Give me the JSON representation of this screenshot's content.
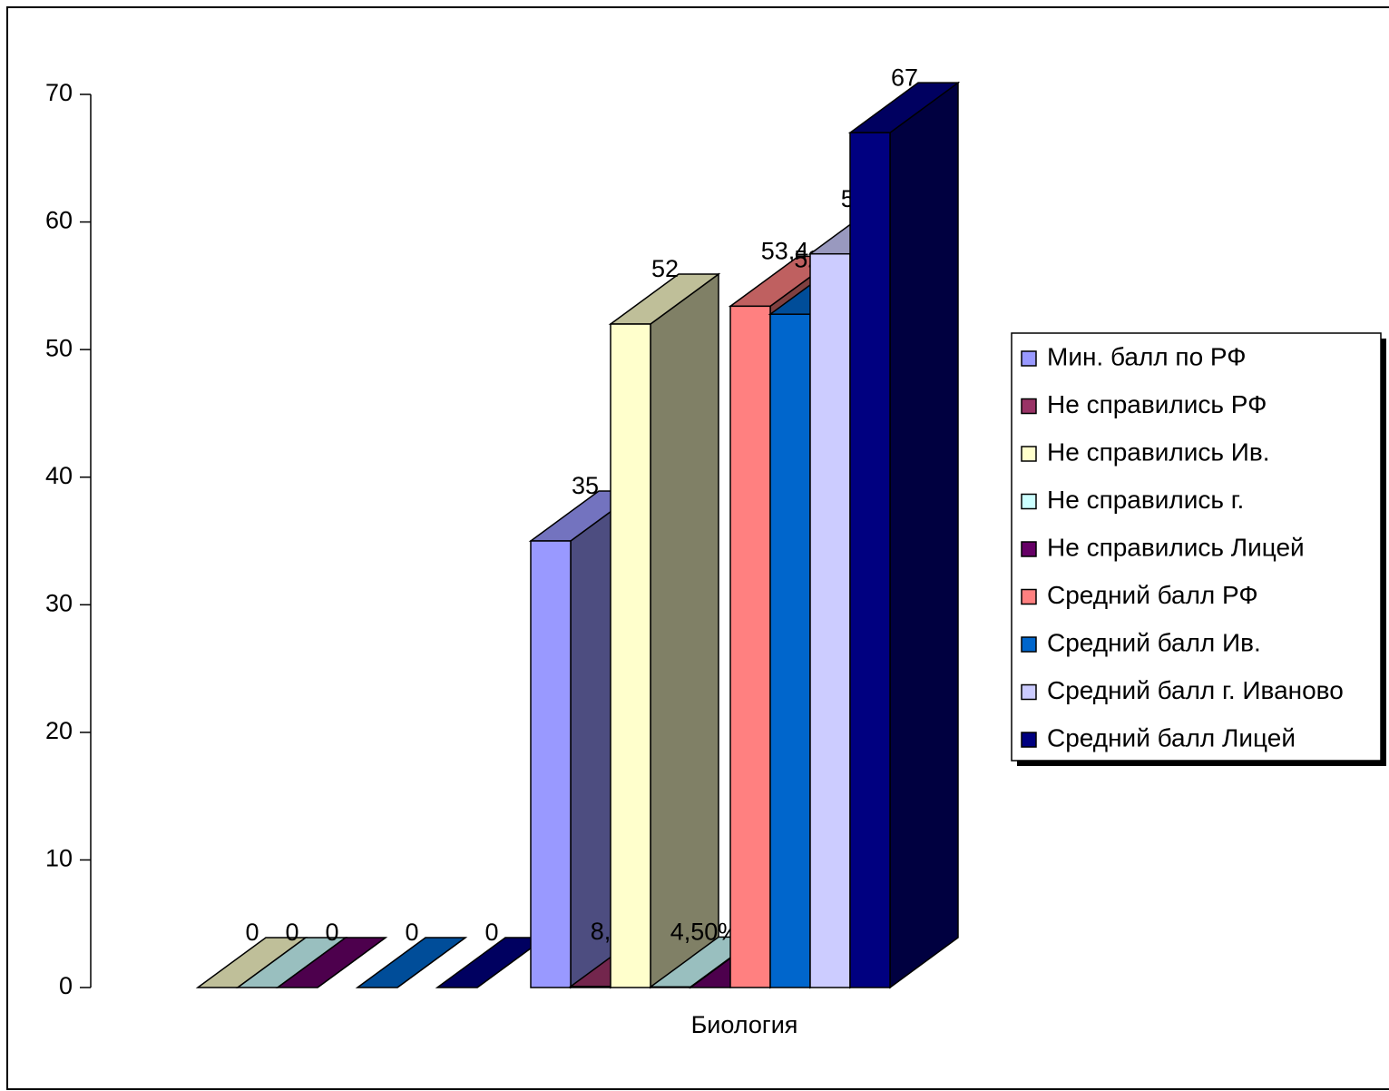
{
  "chart_data": {
    "type": "bar3d",
    "categories": [
      null,
      "Биология"
    ],
    "ylim": [
      0,
      70
    ],
    "yticks": [
      0,
      10,
      20,
      30,
      40,
      50,
      60,
      70
    ],
    "legend": "right",
    "series": [
      {
        "name": "Мин. балл по РФ",
        "color": "#9999ff",
        "values": [
          null,
          35
        ]
      },
      {
        "name": "Не справились РФ",
        "color": "#993366",
        "values": [
          null,
          0.08
        ],
        "value_labels": [
          null,
          "8,00%"
        ]
      },
      {
        "name": "Не справились Ив.",
        "color": "#ffffcc",
        "values": [
          0,
          52
        ]
      },
      {
        "name": "Не справились г.",
        "color": "#ccffff",
        "values": [
          0,
          0.045
        ],
        "value_labels": [
          null,
          "4,50%"
        ]
      },
      {
        "name": "Не справились Лицей",
        "color": "#660066",
        "values": [
          0,
          0
        ]
      },
      {
        "name": "Средний балл РФ",
        "color": "#ff8080",
        "values": [
          null,
          53.4
        ],
        "value_labels": [
          null,
          "53,4"
        ]
      },
      {
        "name": "Средний балл Ив.",
        "color": "#0066cc",
        "values": [
          0,
          52.77
        ],
        "value_labels": [
          null,
          "52,77"
        ]
      },
      {
        "name": "Средний балл г. Иваново",
        "color": "#ccccff",
        "values": [
          null,
          57.5
        ],
        "value_labels": [
          null,
          "57,5"
        ]
      },
      {
        "name": "Средний балл Лицей",
        "color": "#000080",
        "values": [
          0,
          67
        ]
      }
    ]
  }
}
